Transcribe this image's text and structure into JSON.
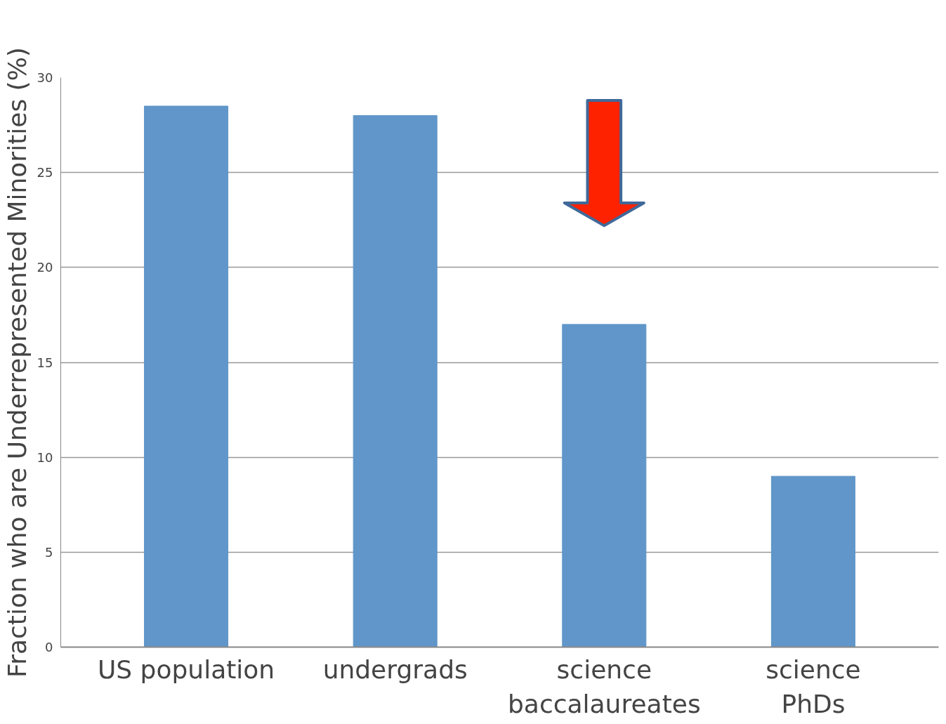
{
  "chart_data": {
    "type": "bar",
    "ylabel": "Fraction who are Underrepresented Minorities (%)",
    "categories": [
      "US population",
      "undergrads",
      "science\nbaccalaureates",
      "science\nPhDs"
    ],
    "values": [
      28.5,
      28.0,
      17.0,
      9.0
    ],
    "color": "#6096c9",
    "ylim": [
      0,
      30
    ],
    "yticks": [
      0,
      5,
      10,
      15,
      20,
      25,
      30
    ],
    "grid": "y"
  }
}
